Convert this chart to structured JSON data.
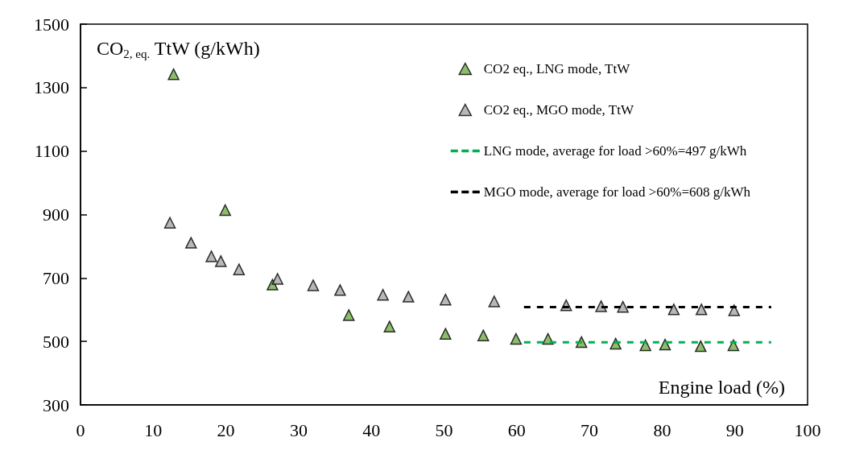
{
  "chart_data": {
    "type": "scatter",
    "ylabel": "CO$_{2, eq.}$ TtW (g/kWh)",
    "xlabel": "Engine load (%)",
    "xlim": [
      0,
      100
    ],
    "xticks": [
      0,
      10,
      20,
      30,
      40,
      50,
      60,
      70,
      80,
      90,
      100
    ],
    "ylim": [
      300,
      1500
    ],
    "yticks": [
      300,
      500,
      700,
      900,
      1100,
      1300,
      1500
    ],
    "grid": false,
    "legend": "top right",
    "marker": "triangle",
    "series": [
      {
        "name": "CO2 eq., LNG mode, TtW",
        "color": "#70ad47",
        "x": [
          12.8,
          19.9,
          26.4,
          36.9,
          42.5,
          50.2,
          55.4,
          59.9,
          64.3,
          68.9,
          73.6,
          77.7,
          80.4,
          85.3,
          89.8
        ],
        "values": [
          1342,
          914,
          679,
          583,
          547,
          524,
          519,
          508,
          508,
          498,
          493,
          488,
          490,
          485,
          488
        ]
      },
      {
        "name": "CO2 eq., MGO mode, TtW",
        "color": "#a6a6a6",
        "x": [
          12.3,
          15.2,
          18.0,
          19.3,
          21.8,
          27.1,
          32.0,
          35.7,
          41.6,
          45.1,
          50.2,
          56.9,
          66.8,
          71.6,
          74.6,
          81.6,
          85.4,
          89.9
        ],
        "values": [
          874,
          811,
          768,
          753,
          727,
          697,
          677,
          662,
          647,
          641,
          632,
          626,
          614,
          611,
          609,
          601,
          601,
          598
        ]
      },
      {
        "name": "LNG mode, average for load >60%=497 g/kWh",
        "type": "line",
        "line_style": "dashed",
        "marker": "none",
        "color": "#00b050",
        "x": [
          61,
          95
        ],
        "values": [
          497,
          497
        ]
      },
      {
        "name": "MGO mode, average for load >60%=608 g/kWh",
        "type": "line",
        "line_style": "dashed",
        "marker": "none",
        "color": "#000000",
        "x": [
          61,
          95
        ],
        "values": [
          608,
          608
        ]
      }
    ]
  }
}
